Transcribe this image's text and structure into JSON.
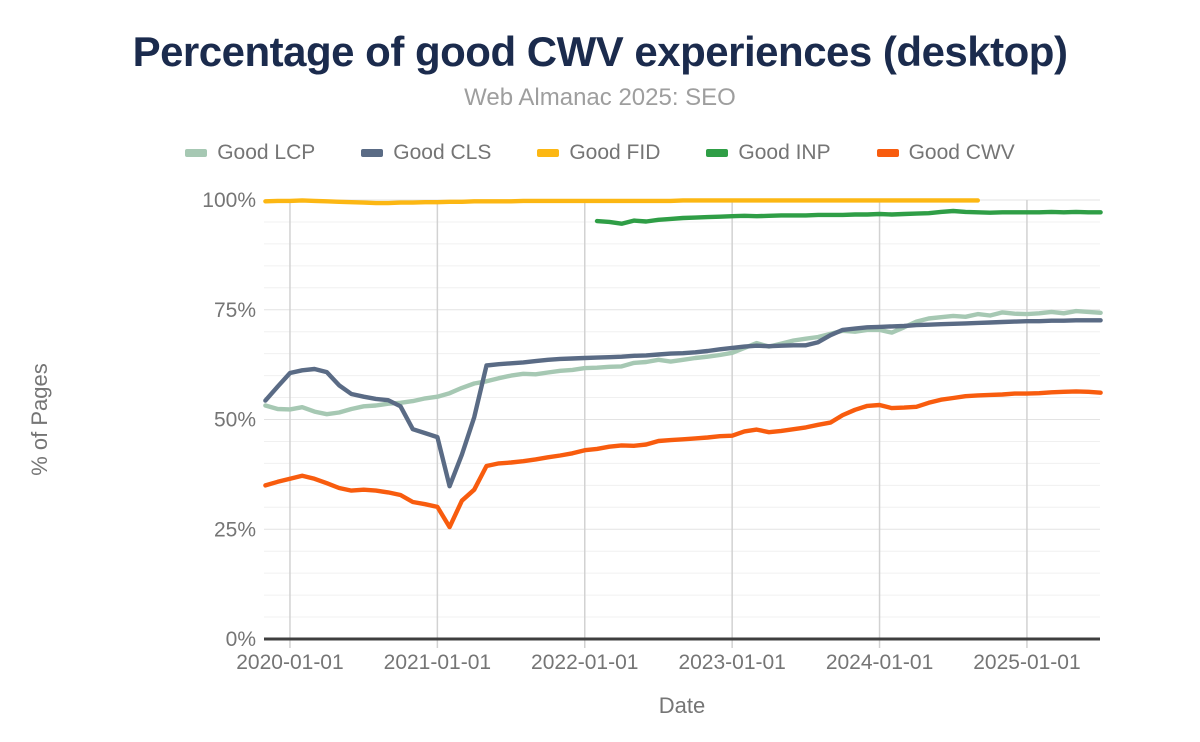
{
  "chart_data": {
    "type": "line",
    "title": "Percentage of good CWV experiences (desktop)",
    "subtitle": "Web Almanac 2025: SEO",
    "xlabel": "Date",
    "ylabel": "% of Pages",
    "ylim": [
      0,
      100
    ],
    "legend_position": "top",
    "grid": "on",
    "interval": "monthly",
    "x_axis_start_month": "2019-11",
    "y_ticks": [
      {
        "value": 0,
        "label": "0%"
      },
      {
        "value": 25,
        "label": "25%"
      },
      {
        "value": 50,
        "label": "50%"
      },
      {
        "value": 75,
        "label": "75%"
      },
      {
        "value": 100,
        "label": "100%"
      }
    ],
    "x_ticks": [
      {
        "month": 2,
        "label": "2020-01-01"
      },
      {
        "month": 14,
        "label": "2021-01-01"
      },
      {
        "month": 26,
        "label": "2022-01-01"
      },
      {
        "month": 38,
        "label": "2023-01-01"
      },
      {
        "month": 50,
        "label": "2024-01-01"
      },
      {
        "month": 62,
        "label": "2025-01-01"
      }
    ],
    "colors": {
      "title": "#1b2b4d",
      "subtitle": "#9e9e9e",
      "tick_text": "#757575",
      "grid_minor": "#f0f0f0",
      "grid_major": "#e3e3e3",
      "grid_vertical": "#d2d2d2",
      "axis": "#3f3f3f"
    },
    "series": [
      {
        "name": "Good LCP",
        "color": "#a6c8b3",
        "start_month": "2019-11",
        "start_index": 0,
        "values": [
          53.2,
          52.4,
          52.3,
          52.8,
          51.8,
          51.2,
          51.6,
          52.4,
          53.0,
          53.2,
          53.6,
          53.8,
          54.2,
          54.8,
          55.2,
          56.0,
          57.2,
          58.2,
          58.7,
          59.4,
          60.0,
          60.4,
          60.3,
          60.7,
          61.1,
          61.3,
          61.7,
          61.8,
          62.0,
          62.1,
          62.9,
          63.1,
          63.6,
          63.2,
          63.6,
          64.0,
          64.3,
          64.7,
          65.2,
          66.3,
          67.4,
          66.6,
          67.3,
          68.0,
          68.4,
          68.8,
          69.5,
          70.2,
          70.0,
          70.4,
          70.4,
          69.8,
          71.0,
          72.3,
          73.0,
          73.3,
          73.6,
          73.4,
          74.0,
          73.7,
          74.4,
          74.1,
          74.0,
          74.2,
          74.5,
          74.2,
          74.7,
          74.5,
          74.3
        ]
      },
      {
        "name": "Good CLS",
        "color": "#5a6b85",
        "start_month": "2019-11",
        "start_index": 0,
        "values": [
          54.3,
          57.5,
          60.6,
          61.2,
          61.5,
          60.8,
          57.8,
          55.8,
          55.2,
          54.7,
          54.4,
          53.0,
          47.8,
          46.9,
          46.0,
          34.8,
          42.0,
          50.5,
          62.3,
          62.6,
          62.8,
          63.0,
          63.3,
          63.6,
          63.8,
          63.9,
          64.0,
          64.1,
          64.2,
          64.3,
          64.5,
          64.6,
          64.8,
          65.0,
          65.1,
          65.3,
          65.6,
          66.0,
          66.3,
          66.6,
          66.8,
          66.7,
          66.8,
          66.9,
          66.9,
          67.6,
          69.2,
          70.4,
          70.7,
          71.0,
          71.1,
          71.2,
          71.3,
          71.5,
          71.6,
          71.7,
          71.8,
          71.9,
          72.0,
          72.1,
          72.2,
          72.3,
          72.4,
          72.4,
          72.5,
          72.5,
          72.6,
          72.6,
          72.6
        ]
      },
      {
        "name": "Good FID",
        "color": "#fcb713",
        "start_month": "2019-11",
        "start_index": 0,
        "values": [
          99.7,
          99.8,
          99.8,
          99.9,
          99.8,
          99.7,
          99.6,
          99.5,
          99.4,
          99.3,
          99.3,
          99.4,
          99.4,
          99.5,
          99.5,
          99.6,
          99.6,
          99.7,
          99.7,
          99.7,
          99.7,
          99.8,
          99.8,
          99.8,
          99.8,
          99.8,
          99.8,
          99.8,
          99.8,
          99.8,
          99.8,
          99.8,
          99.8,
          99.8,
          99.9,
          99.9,
          99.9,
          99.9,
          99.9,
          99.9,
          99.9,
          99.9,
          99.9,
          99.9,
          99.9,
          99.9,
          99.9,
          99.9,
          99.9,
          99.9,
          99.9,
          99.9,
          99.9,
          99.9,
          99.9,
          99.9,
          99.9,
          99.9,
          99.9
        ]
      },
      {
        "name": "Good INP",
        "color": "#2f9e46",
        "start_month": "2022-02",
        "start_index": 27,
        "values": [
          95.2,
          95.0,
          94.6,
          95.3,
          95.1,
          95.5,
          95.7,
          95.9,
          96.0,
          96.1,
          96.2,
          96.3,
          96.4,
          96.3,
          96.4,
          96.5,
          96.5,
          96.5,
          96.6,
          96.6,
          96.6,
          96.7,
          96.7,
          96.8,
          96.7,
          96.8,
          96.9,
          97.0,
          97.3,
          97.5,
          97.3,
          97.2,
          97.1,
          97.2,
          97.2,
          97.2,
          97.2,
          97.3,
          97.2,
          97.3,
          97.2,
          97.2
        ]
      },
      {
        "name": "Good CWV",
        "color": "#f85c0e",
        "start_month": "2019-11",
        "start_index": 0,
        "values": [
          35.0,
          35.8,
          36.5,
          37.2,
          36.5,
          35.5,
          34.4,
          33.8,
          34.0,
          33.8,
          33.4,
          32.8,
          31.2,
          30.7,
          30.1,
          25.5,
          31.5,
          34.0,
          39.4,
          40.0,
          40.2,
          40.5,
          40.9,
          41.4,
          41.8,
          42.3,
          43.0,
          43.3,
          43.8,
          44.1,
          44.0,
          44.3,
          45.1,
          45.3,
          45.5,
          45.7,
          45.9,
          46.2,
          46.3,
          47.3,
          47.7,
          47.1,
          47.4,
          47.8,
          48.2,
          48.8,
          49.3,
          51.0,
          52.2,
          53.1,
          53.3,
          52.6,
          52.7,
          52.9,
          53.8,
          54.5,
          54.9,
          55.3,
          55.5,
          55.6,
          55.7,
          55.9,
          55.9,
          56.0,
          56.2,
          56.3,
          56.4,
          56.3,
          56.1
        ]
      }
    ]
  }
}
